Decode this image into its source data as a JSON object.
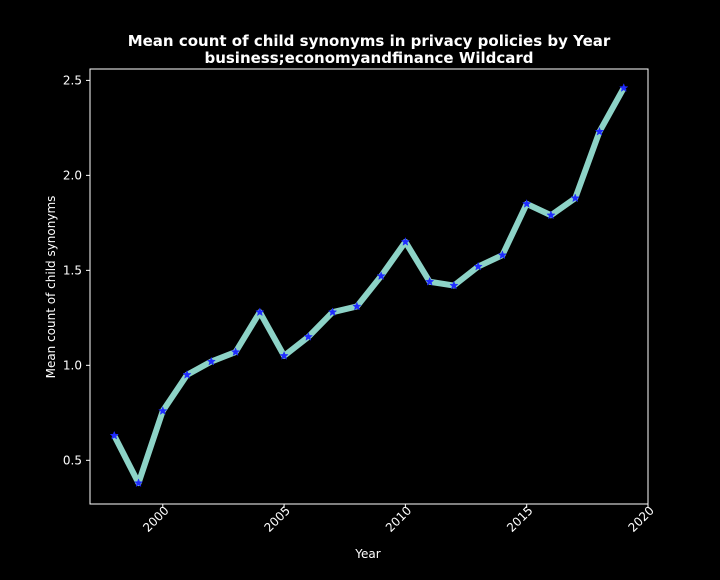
{
  "chart_data": {
    "type": "line",
    "title": "Mean count of child synonyms in privacy policies by Year",
    "subtitle": "business;economyandfinance Wildcard",
    "xlabel": "Year",
    "ylabel": "Mean count of child synonyms",
    "xlim": [
      1997,
      2020
    ],
    "ylim": [
      0.27,
      2.56
    ],
    "xticks": [
      2000,
      2005,
      2010,
      2015,
      2020
    ],
    "yticks": [
      0.5,
      1.0,
      1.5,
      2.0,
      2.5
    ],
    "xtick_labels": [
      "2000",
      "2005",
      "2010",
      "2015",
      "2020"
    ],
    "ytick_labels": [
      "0.5",
      "1.0",
      "1.5",
      "2.0",
      "2.5"
    ],
    "grid": false,
    "x": [
      1998,
      1999,
      2000,
      2001,
      2002,
      2003,
      2004,
      2005,
      2006,
      2007,
      2008,
      2009,
      2010,
      2011,
      2012,
      2013,
      2014,
      2015,
      2016,
      2017,
      2018,
      2019
    ],
    "series": [
      {
        "values": [
          0.63,
          0.38,
          0.76,
          0.95,
          1.02,
          1.07,
          1.28,
          1.05,
          1.15,
          1.28,
          1.31,
          1.47,
          1.65,
          1.44,
          1.42,
          1.52,
          1.58,
          1.85,
          1.79,
          1.88,
          2.23,
          2.46
        ],
        "line_color": "#8dd3c7",
        "marker": "star",
        "marker_color": "#1f2bff"
      }
    ],
    "colors": {
      "background": "#000000",
      "axes": "#ffffff",
      "text": "#ffffff"
    }
  }
}
